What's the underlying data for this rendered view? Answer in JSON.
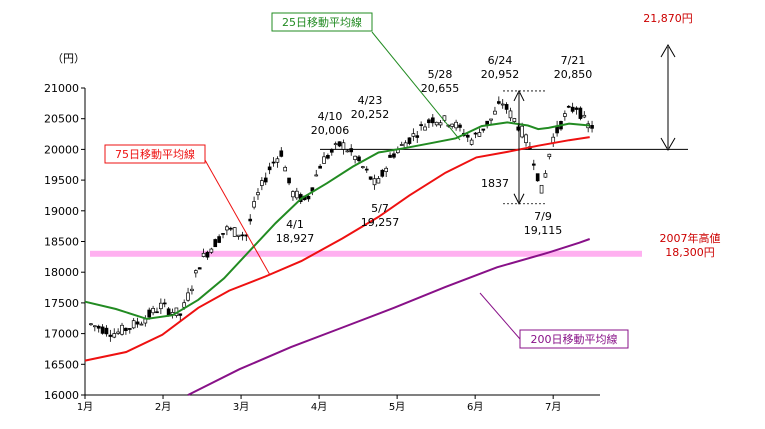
{
  "chart_data": {
    "type": "candlestick",
    "y_unit_label": "（円）",
    "ylim": [
      16000,
      21000
    ],
    "yticks": [
      16000,
      16500,
      17000,
      17500,
      18000,
      18500,
      19000,
      19500,
      20000,
      20500,
      21000
    ],
    "x_month_labels": [
      "1月",
      "2月",
      "3月",
      "4月",
      "5月",
      "6月",
      "7月"
    ],
    "grid": false,
    "reference_lines": {
      "high_2007": {
        "value": 18300,
        "label_line1": "2007年高値",
        "label_line2": "18,300円",
        "color": "#ffb0f0"
      },
      "level_20000": {
        "value": 20000,
        "color": "#000000"
      }
    },
    "target": {
      "label": "21,870円",
      "value": 21870,
      "color": "#cc0000"
    },
    "moving_averages": [
      {
        "name": "25日移動平均線",
        "color": "#228b22",
        "box_border": "#228b22",
        "points": [
          [
            0.0,
            17520
          ],
          [
            0.06,
            17400
          ],
          [
            0.12,
            17240
          ],
          [
            0.17,
            17300
          ],
          [
            0.22,
            17550
          ],
          [
            0.27,
            17900
          ],
          [
            0.32,
            18350
          ],
          [
            0.37,
            18800
          ],
          [
            0.42,
            19200
          ],
          [
            0.47,
            19450
          ],
          [
            0.52,
            19720
          ],
          [
            0.57,
            19950
          ],
          [
            0.62,
            20020
          ],
          [
            0.67,
            20100
          ],
          [
            0.72,
            20180
          ],
          [
            0.77,
            20380
          ],
          [
            0.82,
            20440
          ],
          [
            0.86,
            20390
          ],
          [
            0.88,
            20330
          ],
          [
            0.9,
            20350
          ],
          [
            0.94,
            20420
          ],
          [
            0.98,
            20390
          ]
        ]
      },
      {
        "name": "75日移動平均線",
        "color": "#ee1111",
        "box_border": "#ee1111",
        "points": [
          [
            0.0,
            16560
          ],
          [
            0.08,
            16700
          ],
          [
            0.15,
            16980
          ],
          [
            0.22,
            17420
          ],
          [
            0.28,
            17700
          ],
          [
            0.35,
            17930
          ],
          [
            0.42,
            18180
          ],
          [
            0.5,
            18550
          ],
          [
            0.57,
            18900
          ],
          [
            0.63,
            19250
          ],
          [
            0.7,
            19620
          ],
          [
            0.76,
            19870
          ],
          [
            0.82,
            19960
          ],
          [
            0.88,
            20060
          ],
          [
            0.94,
            20150
          ],
          [
            0.98,
            20200
          ]
        ]
      },
      {
        "name": "200日移動平均線",
        "color": "#881188",
        "box_border": "#881188",
        "points": [
          [
            0.2,
            16000
          ],
          [
            0.3,
            16420
          ],
          [
            0.4,
            16780
          ],
          [
            0.5,
            17100
          ],
          [
            0.6,
            17420
          ],
          [
            0.7,
            17760
          ],
          [
            0.8,
            18080
          ],
          [
            0.9,
            18320
          ],
          [
            0.96,
            18480
          ],
          [
            0.98,
            18540
          ]
        ]
      }
    ],
    "candles": {
      "start_value": 17150,
      "end_value": 20380,
      "count": 130,
      "waypoints": [
        [
          0.0,
          17150
        ],
        [
          0.05,
          17000
        ],
        [
          0.1,
          17200
        ],
        [
          0.14,
          17450
        ],
        [
          0.18,
          17300
        ],
        [
          0.22,
          18200
        ],
        [
          0.27,
          18700
        ],
        [
          0.31,
          18600
        ],
        [
          0.33,
          19200
        ],
        [
          0.36,
          19750
        ],
        [
          0.38,
          19950
        ],
        [
          0.4,
          19300
        ],
        [
          0.43,
          19150
        ],
        [
          0.46,
          19800
        ],
        [
          0.5,
          20100
        ],
        [
          0.53,
          19850
        ],
        [
          0.57,
          19400
        ],
        [
          0.6,
          19900
        ],
        [
          0.64,
          20200
        ],
        [
          0.68,
          20500
        ],
        [
          0.72,
          20450
        ],
        [
          0.76,
          20150
        ],
        [
          0.8,
          20500
        ],
        [
          0.82,
          20780
        ],
        [
          0.86,
          20300
        ],
        [
          0.88,
          19950
        ],
        [
          0.9,
          19300
        ],
        [
          0.92,
          20150
        ],
        [
          0.95,
          20600
        ],
        [
          0.97,
          20700
        ],
        [
          0.99,
          20380
        ]
      ]
    },
    "annotations": [
      {
        "date": "4/1",
        "value": "18,927",
        "kind": "low"
      },
      {
        "date": "4/10",
        "value": "20,006",
        "kind": "high"
      },
      {
        "date": "4/23",
        "value": "20,252",
        "kind": "high"
      },
      {
        "date": "5/7",
        "value": "19,257",
        "kind": "low"
      },
      {
        "date": "5/28",
        "value": "20,655",
        "kind": "high"
      },
      {
        "date": "6/24",
        "value": "20,952",
        "kind": "high"
      },
      {
        "date": "7/9",
        "value": "19,115",
        "kind": "low"
      },
      {
        "date": "7/21",
        "value": "20,850",
        "kind": "high"
      }
    ],
    "drop_width": {
      "value": "1837",
      "from": 20952,
      "to": 19115
    }
  }
}
